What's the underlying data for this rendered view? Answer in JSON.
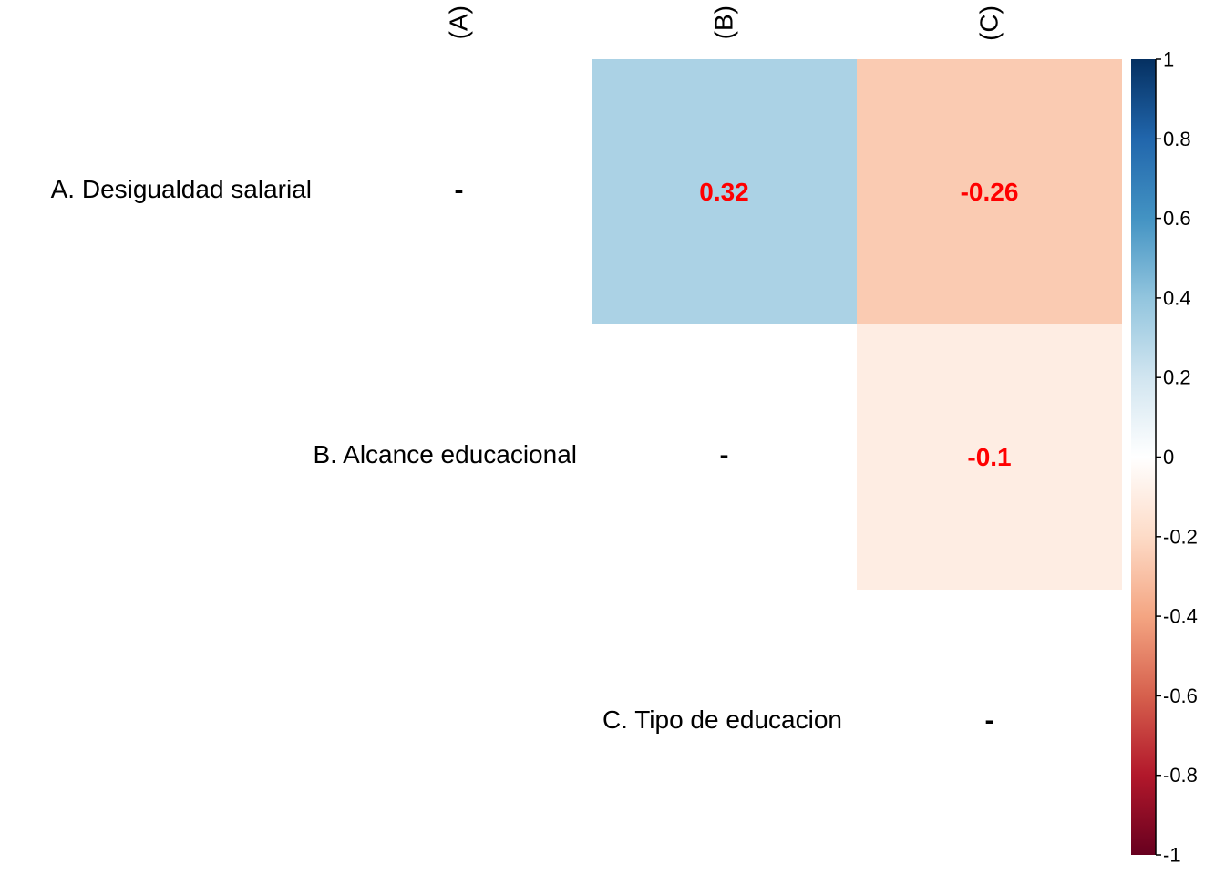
{
  "chart_data": {
    "type": "heatmap",
    "title": "",
    "columns": [
      "(A)",
      "(B)",
      "(C)"
    ],
    "rows": [
      "A. Desigualdad salarial",
      "B. Alcance educacional",
      "C. Tipo de educacion"
    ],
    "cells": [
      {
        "row": 0,
        "col": 0,
        "value": null,
        "label": "-"
      },
      {
        "row": 0,
        "col": 1,
        "value": 0.32,
        "label": "0.32"
      },
      {
        "row": 0,
        "col": 2,
        "value": -0.26,
        "label": "-0.26"
      },
      {
        "row": 1,
        "col": 1,
        "value": null,
        "label": "-"
      },
      {
        "row": 1,
        "col": 2,
        "value": -0.1,
        "label": "-0.1"
      },
      {
        "row": 2,
        "col": 2,
        "value": null,
        "label": "-"
      }
    ],
    "colorbar": {
      "range": [
        -1,
        1
      ],
      "ticks": [
        "1",
        "0.8",
        "0.6",
        "0.4",
        "0.2",
        "0",
        "-0.2",
        "-0.4",
        "-0.6",
        "-0.8",
        "-1"
      ],
      "tick_values": [
        1,
        0.8,
        0.6,
        0.4,
        0.2,
        0,
        -0.2,
        -0.4,
        -0.6,
        -0.8,
        -1
      ],
      "palette": [
        "#67001F",
        "#B2182B",
        "#D6604D",
        "#F4A582",
        "#FDDBC7",
        "#FFFFFF",
        "#D1E5F0",
        "#92C5DE",
        "#4393C3",
        "#2166AC",
        "#053061"
      ]
    },
    "value_label_color": "#FF0000",
    "dash_label_color": "#000000",
    "legend_position": "right"
  }
}
